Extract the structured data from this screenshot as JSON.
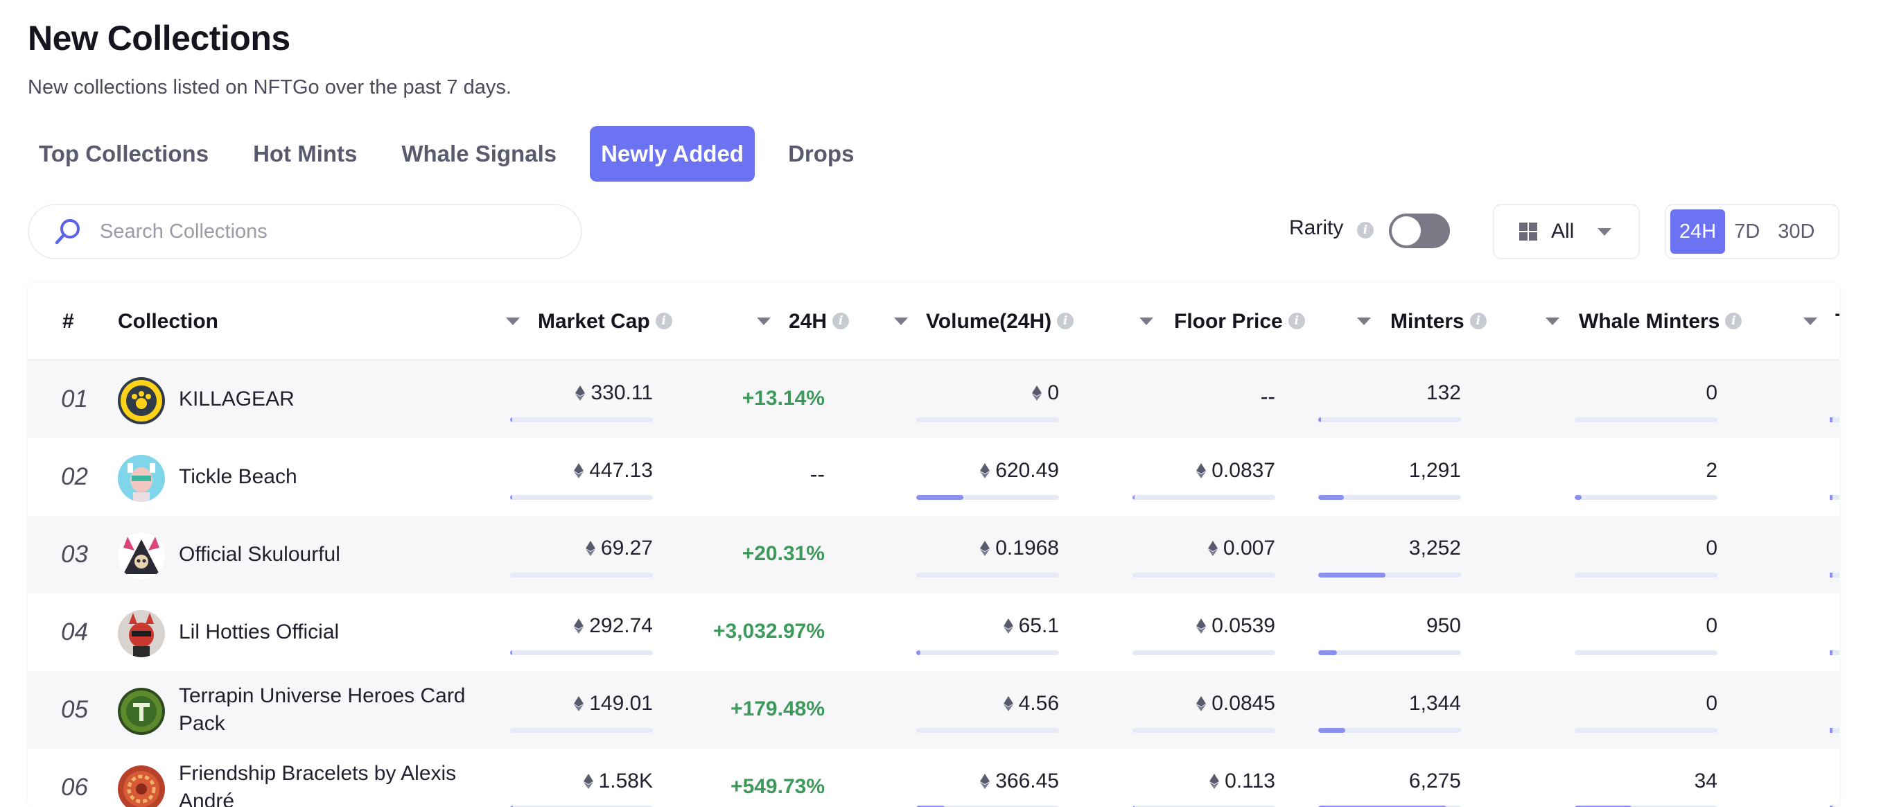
{
  "header": {
    "title": "New Collections",
    "subtitle": "New collections listed on NFTGo over the past 7 days."
  },
  "tabs": [
    {
      "label": "Top Collections",
      "active": false
    },
    {
      "label": "Hot Mints",
      "active": false
    },
    {
      "label": "Whale Signals",
      "active": false
    },
    {
      "label": "Newly Added",
      "active": true
    },
    {
      "label": "Drops",
      "active": false
    }
  ],
  "search": {
    "placeholder": "Search Collections",
    "value": "",
    "icon": "search-icon"
  },
  "rarity": {
    "label": "Rarity",
    "enabled": false
  },
  "filter": {
    "value": "All",
    "icon": "grid-icon"
  },
  "periods": [
    {
      "label": "24H",
      "active": true
    },
    {
      "label": "7D",
      "active": false
    },
    {
      "label": "30D",
      "active": false
    }
  ],
  "colors": {
    "accent": "#6b73f2",
    "positive": "#3d9a5b",
    "bar_track": "#e8e9f7",
    "bar_fill": "#8a90f0"
  },
  "table": {
    "columns": {
      "rank": "#",
      "collection": "Collection",
      "market_cap": "Market Cap",
      "change_24h": "24H",
      "volume": "Volume(24H)",
      "floor": "Floor Price",
      "minters": "Minters",
      "whale_minters": "Whale Minters",
      "cut_off": "T"
    },
    "rows": [
      {
        "rank": "01",
        "name": "KILLAGEAR",
        "market_cap": "330.11",
        "market_cap_pct": 0.01,
        "change": "+13.14%",
        "volume": "0",
        "volume_pct": 0,
        "floor": "--",
        "floor_pct": null,
        "minters": "132",
        "minters_pct": 0.02,
        "whale_minters": "0",
        "whale_pct": 0,
        "avatar": "killagear-avatar"
      },
      {
        "rank": "02",
        "name": "Tickle Beach",
        "market_cap": "447.13",
        "market_cap_pct": 0.01,
        "change": "--",
        "volume": "620.49",
        "volume_pct": 0.33,
        "floor": "0.0837",
        "floor_pct": 0.01,
        "minters": "1,291",
        "minters_pct": 0.18,
        "whale_minters": "2",
        "whale_pct": 0.05,
        "avatar": "tickle-beach-avatar"
      },
      {
        "rank": "03",
        "name": "Official Skulourful",
        "market_cap": "69.27",
        "market_cap_pct": 0.0,
        "change": "+20.31%",
        "volume": "0.1968",
        "volume_pct": 0,
        "floor": "0.007",
        "floor_pct": 0.0,
        "minters": "3,252",
        "minters_pct": 0.47,
        "whale_minters": "0",
        "whale_pct": 0,
        "avatar": "skulourful-avatar"
      },
      {
        "rank": "04",
        "name": "Lil Hotties Official",
        "market_cap": "292.74",
        "market_cap_pct": 0.01,
        "change": "+3,032.97%",
        "volume": "65.1",
        "volume_pct": 0.03,
        "floor": "0.0539",
        "floor_pct": 0.0,
        "minters": "950",
        "minters_pct": 0.13,
        "whale_minters": "0",
        "whale_pct": 0,
        "avatar": "lil-hotties-avatar"
      },
      {
        "rank": "05",
        "name": "Terrapin Universe Heroes Card Pack",
        "market_cap": "149.01",
        "market_cap_pct": 0.0,
        "change": "+179.48%",
        "volume": "4.56",
        "volume_pct": 0,
        "floor": "0.0845",
        "floor_pct": 0.0,
        "minters": "1,344",
        "minters_pct": 0.19,
        "whale_minters": "0",
        "whale_pct": 0,
        "avatar": "terrapin-avatar"
      },
      {
        "rank": "06",
        "name": "Friendship Bracelets by Alexis André",
        "market_cap": "1.58K",
        "market_cap_pct": 0.02,
        "change": "+549.73%",
        "volume": "366.45",
        "volume_pct": 0.2,
        "floor": "0.113",
        "floor_pct": 0.01,
        "minters": "6,275",
        "minters_pct": 0.9,
        "whale_minters": "34",
        "whale_pct": 0.4,
        "avatar": "friendship-avatar"
      }
    ]
  }
}
